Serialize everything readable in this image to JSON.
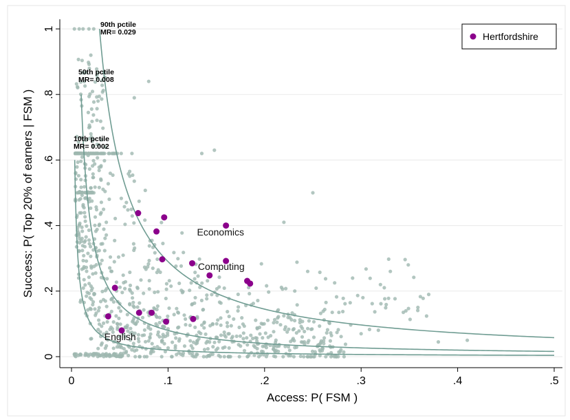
{
  "chart_data": {
    "type": "scatter",
    "xlabel": "Access: P( FSM )",
    "ylabel": "Success: P( Top 20% of earners | FSM )",
    "xlim": [
      0,
      0.5
    ],
    "ylim": [
      0,
      1
    ],
    "x_ticks": [
      0,
      0.1,
      0.2,
      0.3,
      0.4,
      0.5
    ],
    "x_tick_labels": [
      "0",
      ".1",
      ".2",
      ".3",
      ".4",
      ".5"
    ],
    "y_ticks": [
      0,
      0.2,
      0.4,
      0.6,
      0.8,
      1
    ],
    "y_tick_labels": [
      "0",
      ".2",
      ".4",
      ".6",
      ".8",
      "1"
    ],
    "legend": {
      "position": "top-right",
      "entries": [
        {
          "name": "Hertfordshire",
          "color": "#8b008b"
        }
      ]
    },
    "colors": {
      "background_points": "#9fb8b0",
      "highlight": "#8b008b",
      "curves": "#6f9c92"
    },
    "curves": [
      {
        "label_line1": "90th pctile",
        "label_line2": "MR= 0.029",
        "mr": 0.029
      },
      {
        "label_line1": "50th pctile",
        "label_line2": "MR= 0.008",
        "mr": 0.008
      },
      {
        "label_line1": "10th pctile",
        "label_line2": "MR= 0.002",
        "mr": 0.002
      }
    ],
    "highlight_series": {
      "name": "Hertfordshire",
      "points": [
        {
          "x": 0.069,
          "y": 0.438
        },
        {
          "x": 0.096,
          "y": 0.425
        },
        {
          "x": 0.088,
          "y": 0.382
        },
        {
          "x": 0.16,
          "y": 0.4
        },
        {
          "x": 0.094,
          "y": 0.297
        },
        {
          "x": 0.125,
          "y": 0.285
        },
        {
          "x": 0.16,
          "y": 0.292
        },
        {
          "x": 0.143,
          "y": 0.248
        },
        {
          "x": 0.182,
          "y": 0.231
        },
        {
          "x": 0.185,
          "y": 0.223
        },
        {
          "x": 0.045,
          "y": 0.21
        },
        {
          "x": 0.07,
          "y": 0.134
        },
        {
          "x": 0.083,
          "y": 0.134
        },
        {
          "x": 0.038,
          "y": 0.123
        },
        {
          "x": 0.098,
          "y": 0.107
        },
        {
          "x": 0.126,
          "y": 0.115
        },
        {
          "x": 0.052,
          "y": 0.08
        }
      ]
    },
    "annotations": [
      {
        "text": "Economics",
        "x": 0.13,
        "y": 0.37
      },
      {
        "text": "Computing",
        "x": 0.131,
        "y": 0.265
      },
      {
        "text": "English",
        "x": 0.034,
        "y": 0.05
      }
    ]
  }
}
